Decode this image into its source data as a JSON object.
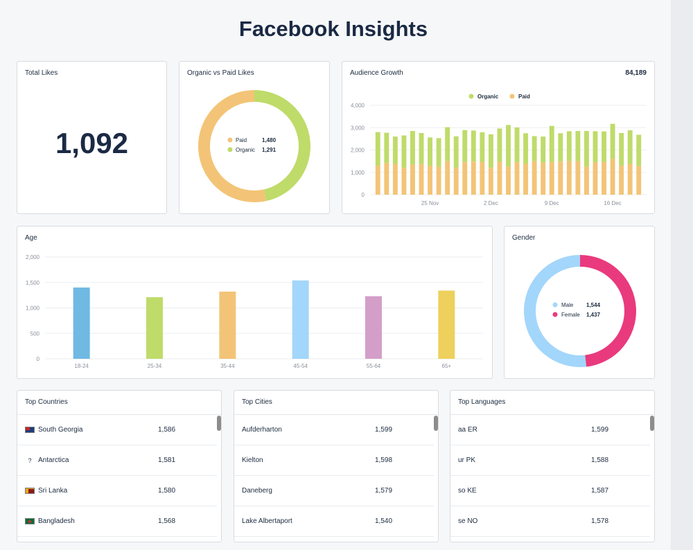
{
  "page": {
    "title": "Facebook Insights"
  },
  "total_likes": {
    "title": "Total Likes",
    "value": "1,092"
  },
  "organic_vs_paid": {
    "title": "Organic vs Paid Likes",
    "legend": [
      {
        "label": "Paid",
        "value": "1,480",
        "color": "#f3c477"
      },
      {
        "label": "Organic",
        "value": "1,291",
        "color": "#bfdb6a"
      }
    ]
  },
  "audience_growth": {
    "title": "Audience Growth",
    "total": "84,189",
    "legend": [
      {
        "label": "Organic",
        "color": "#bfdb6a"
      },
      {
        "label": "Paid",
        "color": "#f3c477"
      }
    ]
  },
  "age": {
    "title": "Age"
  },
  "gender": {
    "title": "Gender",
    "legend": [
      {
        "label": "Male",
        "value": "1,544",
        "color": "#a3d6fb"
      },
      {
        "label": "Female",
        "value": "1,437",
        "color": "#e93a7d"
      }
    ]
  },
  "top_countries": {
    "title": "Top Countries",
    "rows": [
      {
        "flag": "south-georgia-flag",
        "name": "South Georgia",
        "value": "1,586"
      },
      {
        "flag": "unknown",
        "flag_glyph": "?",
        "name": "Antarctica",
        "value": "1,581"
      },
      {
        "flag": "sri-lanka-flag",
        "name": "Sri Lanka",
        "value": "1,580"
      },
      {
        "flag": "bangladesh-flag",
        "name": "Bangladesh",
        "value": "1,568"
      }
    ]
  },
  "top_cities": {
    "title": "Top Cities",
    "rows": [
      {
        "name": "Aufderharton",
        "value": "1,599"
      },
      {
        "name": "Kielton",
        "value": "1,598"
      },
      {
        "name": "Daneberg",
        "value": "1,579"
      },
      {
        "name": "Lake Albertaport",
        "value": "1,540"
      }
    ]
  },
  "top_languages": {
    "title": "Top Languages",
    "rows": [
      {
        "name": "aa ER",
        "value": "1,599"
      },
      {
        "name": "ur PK",
        "value": "1,588"
      },
      {
        "name": "so KE",
        "value": "1,587"
      },
      {
        "name": "se NO",
        "value": "1,578"
      }
    ]
  },
  "chart_data": [
    {
      "type": "pie",
      "title": "Organic vs Paid Likes",
      "categories": [
        "Paid",
        "Organic"
      ],
      "values": [
        1480,
        1291
      ],
      "colors": [
        "#f3c477",
        "#bfdb6a"
      ]
    },
    {
      "type": "bar",
      "title": "Audience Growth",
      "stacked": true,
      "ylim": [
        0,
        4000
      ],
      "yticks": [
        "0",
        "1,000",
        "2,000",
        "3,000",
        "4,000"
      ],
      "ytick_values": [
        0,
        1000,
        2000,
        3000,
        4000
      ],
      "xticks": [
        {
          "label": "25 Nov",
          "index": 6
        },
        {
          "label": "2 Dec",
          "index": 13
        },
        {
          "label": "9 Dec",
          "index": 20
        },
        {
          "label": "16 Dec",
          "index": 27
        }
      ],
      "series": [
        {
          "name": "Paid",
          "color": "#f3c477",
          "values": [
            1300,
            1420,
            1380,
            1200,
            1350,
            1360,
            1300,
            1250,
            1500,
            1200,
            1450,
            1480,
            1460,
            1200,
            1470,
            1250,
            1450,
            1380,
            1500,
            1420,
            1460,
            1480,
            1500,
            1500,
            1260,
            1440,
            1460,
            1600,
            1300,
            1380,
            1280
          ]
        },
        {
          "name": "Organic",
          "color": "#bfdb6a",
          "values": [
            1500,
            1350,
            1220,
            1450,
            1500,
            1400,
            1260,
            1280,
            1520,
            1410,
            1440,
            1390,
            1330,
            1500,
            1490,
            1870,
            1560,
            1370,
            1120,
            1180,
            1620,
            1270,
            1340,
            1350,
            1590,
            1400,
            1370,
            1570,
            1460,
            1500,
            1400
          ]
        }
      ]
    },
    {
      "type": "bar",
      "title": "Age",
      "categories": [
        "18-24",
        "25-34",
        "35-44",
        "45-54",
        "55-64",
        "65+"
      ],
      "values": [
        1400,
        1210,
        1320,
        1540,
        1230,
        1340
      ],
      "colors": [
        "#6fb9e3",
        "#bfdb6a",
        "#f3c477",
        "#a3d6fb",
        "#d39fc9",
        "#eed05c"
      ],
      "ylim": [
        0,
        2000
      ],
      "yticks": [
        "0",
        "500",
        "1,000",
        "1,500",
        "2,000"
      ],
      "ytick_values": [
        0,
        500,
        1000,
        1500,
        2000
      ]
    },
    {
      "type": "pie",
      "title": "Gender",
      "categories": [
        "Male",
        "Female"
      ],
      "values": [
        1544,
        1437
      ],
      "colors": [
        "#a3d6fb",
        "#e93a7d"
      ]
    }
  ]
}
